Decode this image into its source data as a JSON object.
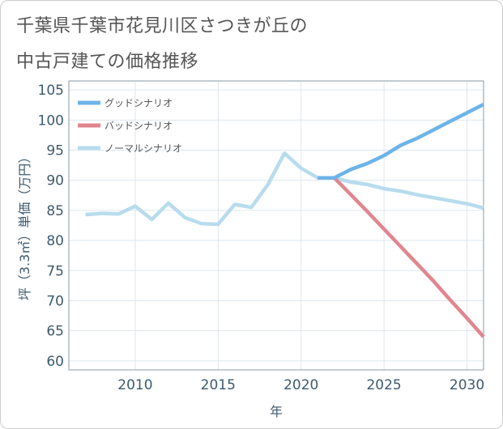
{
  "title_lines": [
    "千葉県千葉市花見川区さつきが丘の",
    "中古戸建ての価格推移"
  ],
  "chart_data": {
    "type": "line",
    "xlabel": "年",
    "ylabel": "坪（3.3㎡）単価（万円）",
    "xlim": [
      2006,
      2031
    ],
    "ylim": [
      58.5,
      106.5
    ],
    "xticks": [
      2010,
      2015,
      2020,
      2025,
      2030
    ],
    "yticks": [
      60,
      65,
      70,
      75,
      80,
      85,
      90,
      95,
      100,
      105
    ],
    "grid": true,
    "legend_position": "top-left",
    "series": [
      {
        "name": "グッドシナリオ",
        "color": "#6cb4e8",
        "x": [
          2021,
          2022,
          2023,
          2024,
          2025,
          2026,
          2027,
          2028,
          2029,
          2030,
          2031
        ],
        "y": [
          90.4,
          90.4,
          91.8,
          92.8,
          94.1,
          95.8,
          97.0,
          98.4,
          99.8,
          101.2,
          102.6
        ]
      },
      {
        "name": "バッドシナリオ",
        "color": "#e0868f",
        "x": [
          2021,
          2022,
          2023,
          2024,
          2025,
          2026,
          2027,
          2028,
          2029,
          2030,
          2031
        ],
        "y": [
          90.4,
          90.4,
          87.6,
          84.8,
          81.9,
          79.0,
          76.1,
          73.2,
          70.1,
          67.1,
          64.0
        ]
      },
      {
        "name": "ノーマルシナリオ",
        "color": "#b8dced",
        "x": [
          2007,
          2008,
          2009,
          2010,
          2011,
          2012,
          2013,
          2014,
          2015,
          2016,
          2017,
          2018,
          2019,
          2020,
          2021,
          2022,
          2023,
          2024,
          2025,
          2026,
          2027,
          2028,
          2029,
          2030,
          2031
        ],
        "y": [
          84.3,
          84.5,
          84.4,
          85.7,
          83.5,
          86.2,
          83.8,
          82.8,
          82.7,
          86.0,
          85.5,
          89.3,
          94.5,
          92.0,
          90.4,
          90.4,
          89.7,
          89.3,
          88.6,
          88.2,
          87.6,
          87.1,
          86.6,
          86.1,
          85.4
        ]
      }
    ]
  }
}
